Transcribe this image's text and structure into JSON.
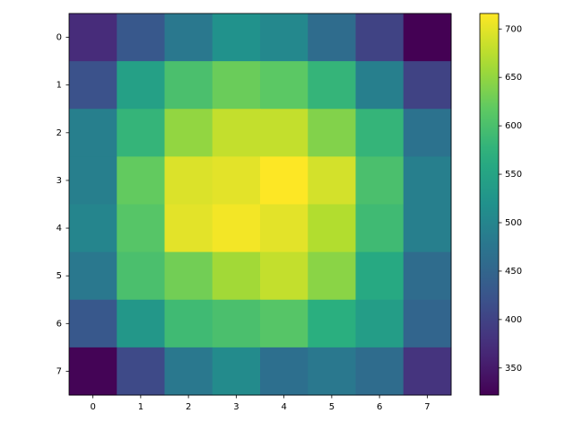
{
  "chart_data": {
    "type": "heatmap",
    "colormap": "viridis",
    "xticks": [
      0,
      1,
      2,
      3,
      4,
      5,
      6,
      7
    ],
    "yticks": [
      0,
      1,
      2,
      3,
      4,
      5,
      6,
      7
    ],
    "values": [
      [
        370,
        430,
        480,
        520,
        505,
        460,
        400,
        322
      ],
      [
        420,
        545,
        600,
        625,
        615,
        580,
        490,
        400
      ],
      [
        490,
        580,
        650,
        680,
        680,
        640,
        580,
        470
      ],
      [
        490,
        620,
        695,
        700,
        716,
        690,
        600,
        490
      ],
      [
        500,
        610,
        700,
        710,
        700,
        670,
        590,
        490
      ],
      [
        480,
        600,
        630,
        660,
        680,
        645,
        560,
        460
      ],
      [
        430,
        530,
        590,
        600,
        610,
        570,
        540,
        450
      ],
      [
        325,
        410,
        480,
        510,
        465,
        480,
        460,
        380
      ]
    ],
    "colorbar": {
      "lim": [
        322,
        716
      ],
      "ticks": [
        350,
        400,
        450,
        500,
        550,
        600,
        650,
        700
      ]
    }
  }
}
